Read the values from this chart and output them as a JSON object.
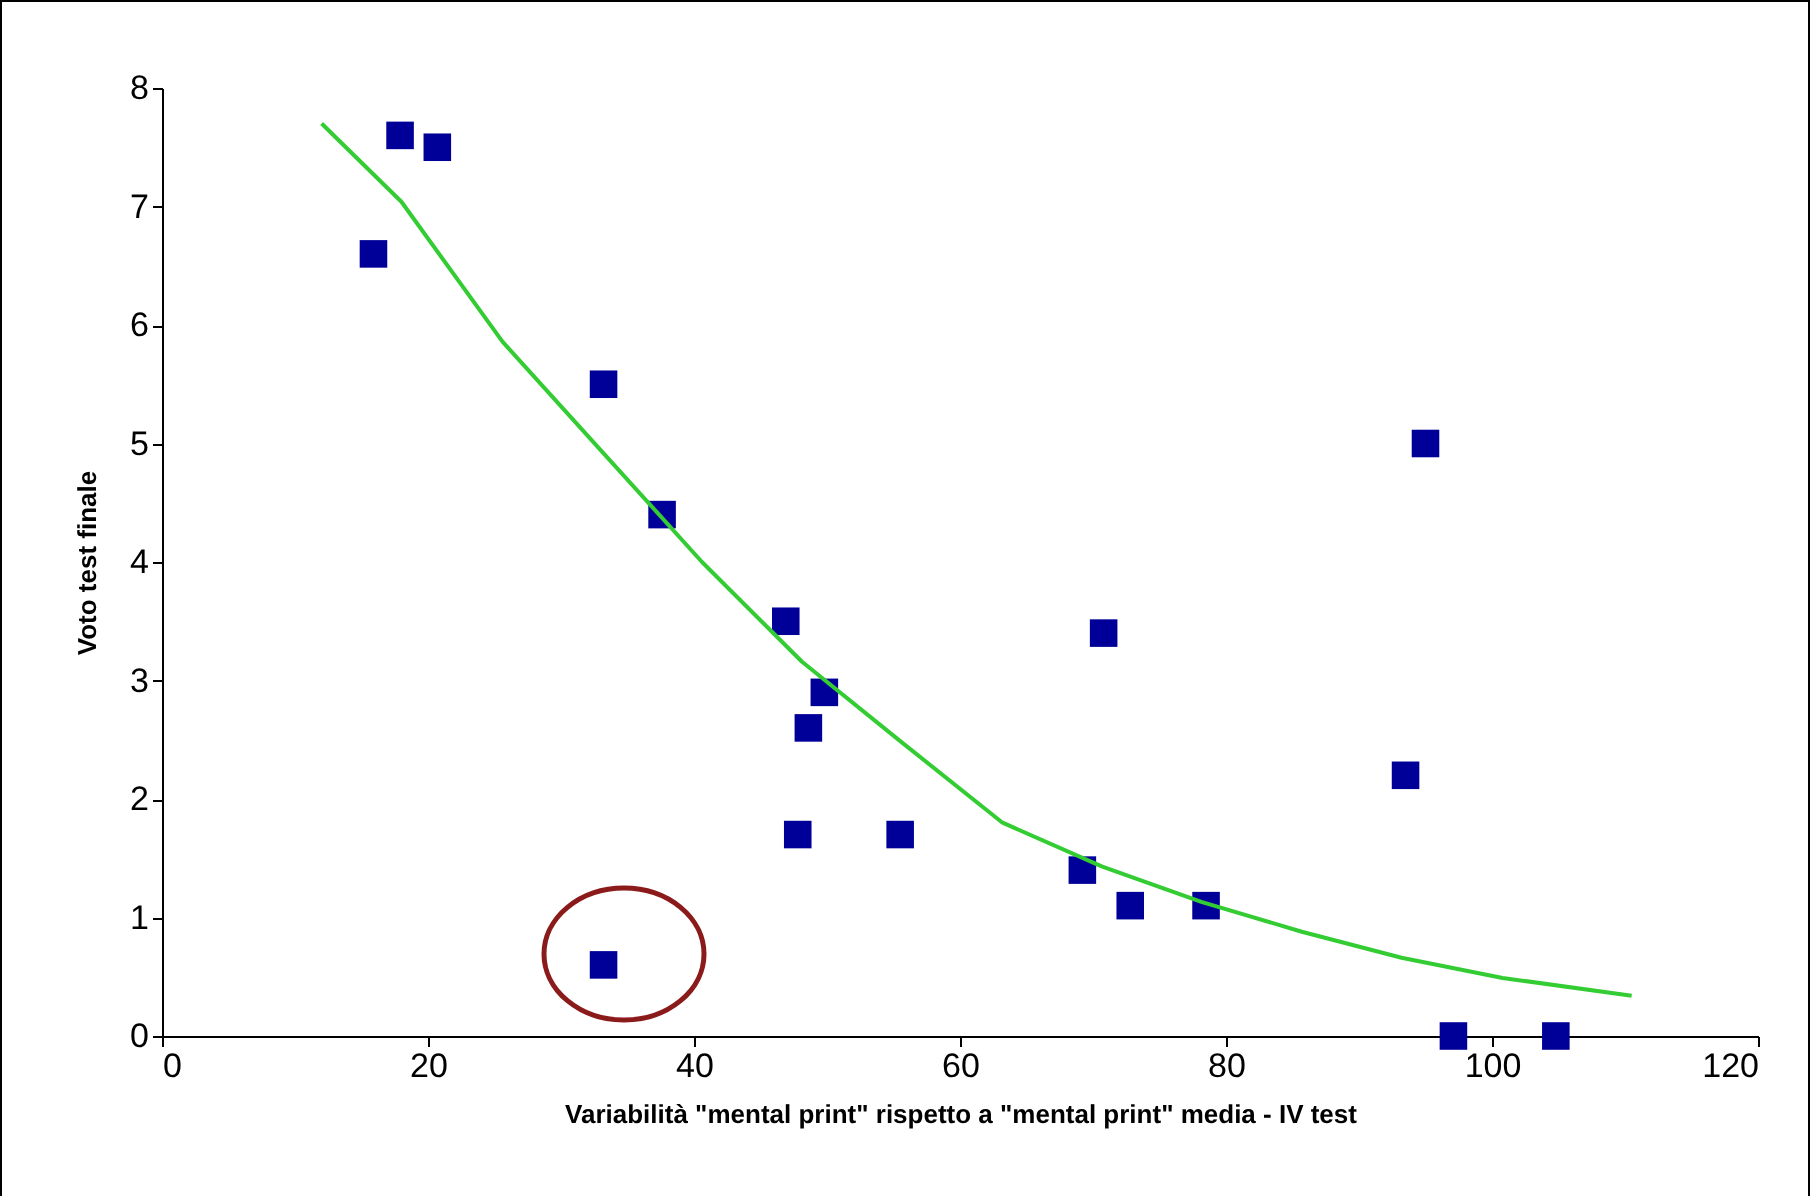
{
  "chart_data": {
    "type": "scatter",
    "xlabel": "Variabilità \"mental print\" rispetto a \"mental print\" media - IV test",
    "ylabel": "Voto test finale",
    "xlim": [
      0,
      120
    ],
    "xticks": [
      0,
      20,
      40,
      60,
      80,
      100,
      120
    ],
    "ylim": [
      0,
      8
    ],
    "yticks": [
      0,
      1,
      2,
      3,
      4,
      5,
      6,
      7,
      8
    ],
    "grid": false,
    "series": [
      {
        "color": "#000099",
        "marker": "square",
        "x": [
          15.9,
          17.9,
          20.7,
          33.2,
          37.6,
          46.9,
          49.8,
          48.6,
          47.8,
          55.5,
          70.8,
          69.2,
          72.8,
          78.5,
          95.0,
          93.5,
          97.1,
          104.8,
          33.2
        ],
        "values": [
          6.6,
          7.6,
          7.5,
          5.5,
          4.4,
          3.5,
          2.9,
          2.6,
          1.7,
          1.7,
          3.4,
          1.4,
          1.1,
          1.1,
          5.0,
          2.2,
          0,
          0,
          0.6
        ]
      },
      {
        "type": "line",
        "color": "#33cc33",
        "x": [
          12,
          18,
          25.6,
          33.1,
          40.6,
          48.1,
          55.6,
          63.2,
          70.7,
          78.2,
          85.7,
          93.2,
          100.8,
          110.5
        ],
        "values": [
          7.7,
          7.04,
          5.86,
          4.93,
          4.0,
          3.16,
          2.48,
          1.8,
          1.43,
          1.13,
          0.88,
          0.66,
          0.49,
          0.34
        ]
      }
    ]
  }
}
